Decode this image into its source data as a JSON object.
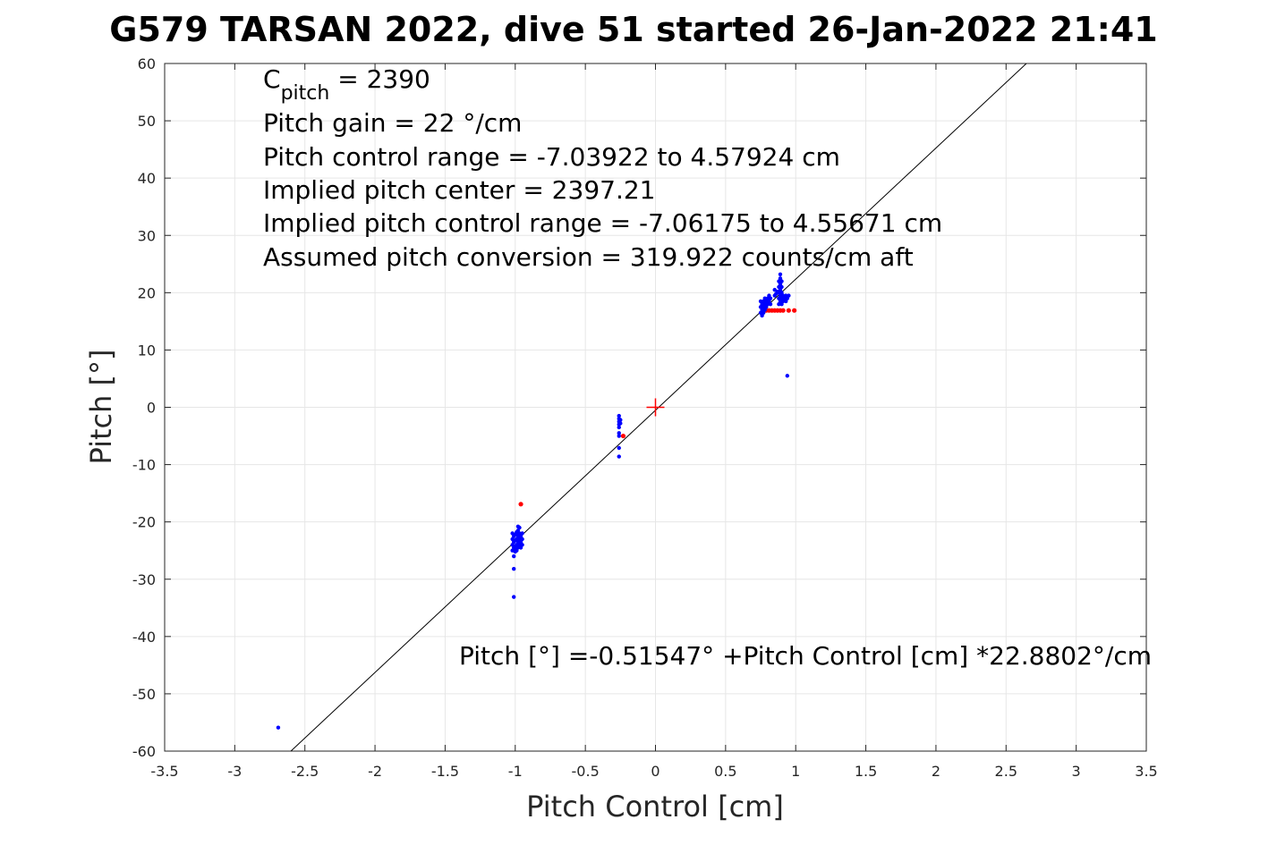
{
  "chart_data": {
    "type": "scatter",
    "title": "G579 TARSAN 2022, dive 51 started 26-Jan-2022 21:41",
    "xlabel": "Pitch Control [cm]",
    "ylabel": "Pitch [°]",
    "xlim": [
      -3.5,
      3.5
    ],
    "ylim": [
      -60,
      60
    ],
    "xticks": [
      -3.5,
      -3,
      -2.5,
      -2,
      -1.5,
      -1,
      -0.5,
      0,
      0.5,
      1,
      1.5,
      2,
      2.5,
      3,
      3.5
    ],
    "yticks": [
      -60,
      -50,
      -40,
      -30,
      -20,
      -10,
      0,
      10,
      20,
      30,
      40,
      50,
      60
    ],
    "xtick_labels": [
      "-3.5",
      "-3",
      "-2.5",
      "-2",
      "-1.5",
      "-1",
      "-0.5",
      "0",
      "0.5",
      "1",
      "1.5",
      "2",
      "2.5",
      "3",
      "3.5"
    ],
    "ytick_labels": [
      "-60",
      "-50",
      "-40",
      "-30",
      "-20",
      "-10",
      "0",
      "10",
      "20",
      "30",
      "40",
      "50",
      "60"
    ],
    "grid": true,
    "colors": {
      "blue_series": "#0000ff",
      "red_series": "#ff0000",
      "fit_line": "#000000",
      "center_marker": "#ff0000",
      "grid": "#e6e6e6",
      "axes": "#262626"
    },
    "fit_line": {
      "intercept": -0.51547,
      "slope": 22.8802
    },
    "center_marker": {
      "x": 0,
      "y": 0
    },
    "annotations": {
      "c_pitch_prefix": "C",
      "c_pitch_sub": "pitch",
      "c_pitch_value": " = 2390",
      "lines": [
        "Pitch gain = 22 °/cm",
        "Pitch control range = -7.03922 to 4.57924 cm",
        "Implied pitch center = 2397.21",
        "Implied pitch control range = -7.06175 to 4.55671 cm",
        "Assumed pitch conversion = 319.922 counts/cm aft"
      ],
      "fit_equation": "Pitch [°] =-0.51547° +Pitch Control [cm] *22.8802°/cm"
    },
    "series": [
      {
        "name": "blue",
        "points": [
          [
            -2.69,
            -55.9
          ],
          [
            -1.01,
            -33.1
          ],
          [
            -1.01,
            -28.2
          ],
          [
            -1.01,
            -26.0
          ],
          [
            -1.02,
            -22.0
          ],
          [
            -1.02,
            -23.0
          ],
          [
            -1.02,
            -24.0
          ],
          [
            -1.02,
            -25.0
          ],
          [
            -1.01,
            -22.5
          ],
          [
            -1.01,
            -23.5
          ],
          [
            -1.01,
            -24.5
          ],
          [
            -1.0,
            -22.2
          ],
          [
            -1.0,
            -23.2
          ],
          [
            -1.0,
            -24.2
          ],
          [
            -1.0,
            -25.2
          ],
          [
            -0.99,
            -22.0
          ],
          [
            -0.99,
            -23.0
          ],
          [
            -0.99,
            -24.0
          ],
          [
            -0.99,
            -25.0
          ],
          [
            -0.98,
            -21.5
          ],
          [
            -0.98,
            -22.5
          ],
          [
            -0.98,
            -23.5
          ],
          [
            -0.98,
            -24.5
          ],
          [
            -0.97,
            -21.0
          ],
          [
            -0.97,
            -22.0
          ],
          [
            -0.97,
            -23.0
          ],
          [
            -0.97,
            -24.0
          ],
          [
            -0.96,
            -22.5
          ],
          [
            -0.96,
            -23.5
          ],
          [
            -0.96,
            -24.5
          ],
          [
            -0.95,
            -22.0
          ],
          [
            -0.95,
            -23.0
          ],
          [
            -0.95,
            -24.0
          ],
          [
            -0.99,
            -21.8
          ],
          [
            -0.98,
            -20.8
          ],
          [
            -1.0,
            -24.8
          ],
          [
            -0.26,
            -1.5
          ],
          [
            -0.26,
            -2.0
          ],
          [
            -0.26,
            -2.5
          ],
          [
            -0.26,
            -3.0
          ],
          [
            -0.26,
            -3.5
          ],
          [
            -0.25,
            -2.2
          ],
          [
            -0.25,
            -2.8
          ],
          [
            -0.26,
            -4.5
          ],
          [
            -0.26,
            -5.0
          ],
          [
            -0.26,
            -7.1
          ],
          [
            -0.26,
            -8.6
          ],
          [
            0.75,
            16.5
          ],
          [
            0.75,
            17.5
          ],
          [
            0.75,
            18.5
          ],
          [
            0.76,
            16.0
          ],
          [
            0.76,
            17.0
          ],
          [
            0.76,
            18.0
          ],
          [
            0.77,
            16.5
          ],
          [
            0.77,
            17.5
          ],
          [
            0.77,
            18.5
          ],
          [
            0.78,
            17.0
          ],
          [
            0.78,
            18.0
          ],
          [
            0.78,
            19.0
          ],
          [
            0.79,
            17.5
          ],
          [
            0.79,
            18.5
          ],
          [
            0.8,
            18.0
          ],
          [
            0.8,
            19.0
          ],
          [
            0.81,
            18.5
          ],
          [
            0.81,
            19.5
          ],
          [
            0.82,
            18.0
          ],
          [
            0.82,
            19.0
          ],
          [
            0.85,
            19.5
          ],
          [
            0.85,
            20.5
          ],
          [
            0.86,
            19.8
          ],
          [
            0.87,
            20.2
          ],
          [
            0.88,
            18.0
          ],
          [
            0.88,
            19.0
          ],
          [
            0.88,
            20.0
          ],
          [
            0.88,
            21.0
          ],
          [
            0.88,
            22.0
          ],
          [
            0.89,
            18.5
          ],
          [
            0.89,
            19.5
          ],
          [
            0.89,
            20.5
          ],
          [
            0.89,
            21.5
          ],
          [
            0.89,
            22.5
          ],
          [
            0.89,
            23.2
          ],
          [
            0.9,
            18.0
          ],
          [
            0.9,
            19.0
          ],
          [
            0.9,
            20.0
          ],
          [
            0.9,
            21.0
          ],
          [
            0.9,
            22.0
          ],
          [
            0.91,
            18.5
          ],
          [
            0.91,
            19.5
          ],
          [
            0.92,
            19.0
          ],
          [
            0.93,
            18.5
          ],
          [
            0.93,
            19.5
          ],
          [
            0.94,
            19.0
          ],
          [
            0.95,
            19.5
          ],
          [
            0.94,
            5.5
          ]
        ]
      },
      {
        "name": "red",
        "points": [
          [
            -0.96,
            -16.9
          ],
          [
            -0.23,
            -5.0
          ],
          [
            0.77,
            16.9
          ],
          [
            0.79,
            16.9
          ],
          [
            0.81,
            16.9
          ],
          [
            0.83,
            16.9
          ],
          [
            0.85,
            16.9
          ],
          [
            0.87,
            16.9
          ],
          [
            0.89,
            16.9
          ],
          [
            0.91,
            16.9
          ],
          [
            0.95,
            16.9
          ],
          [
            0.99,
            16.9
          ]
        ]
      }
    ]
  }
}
